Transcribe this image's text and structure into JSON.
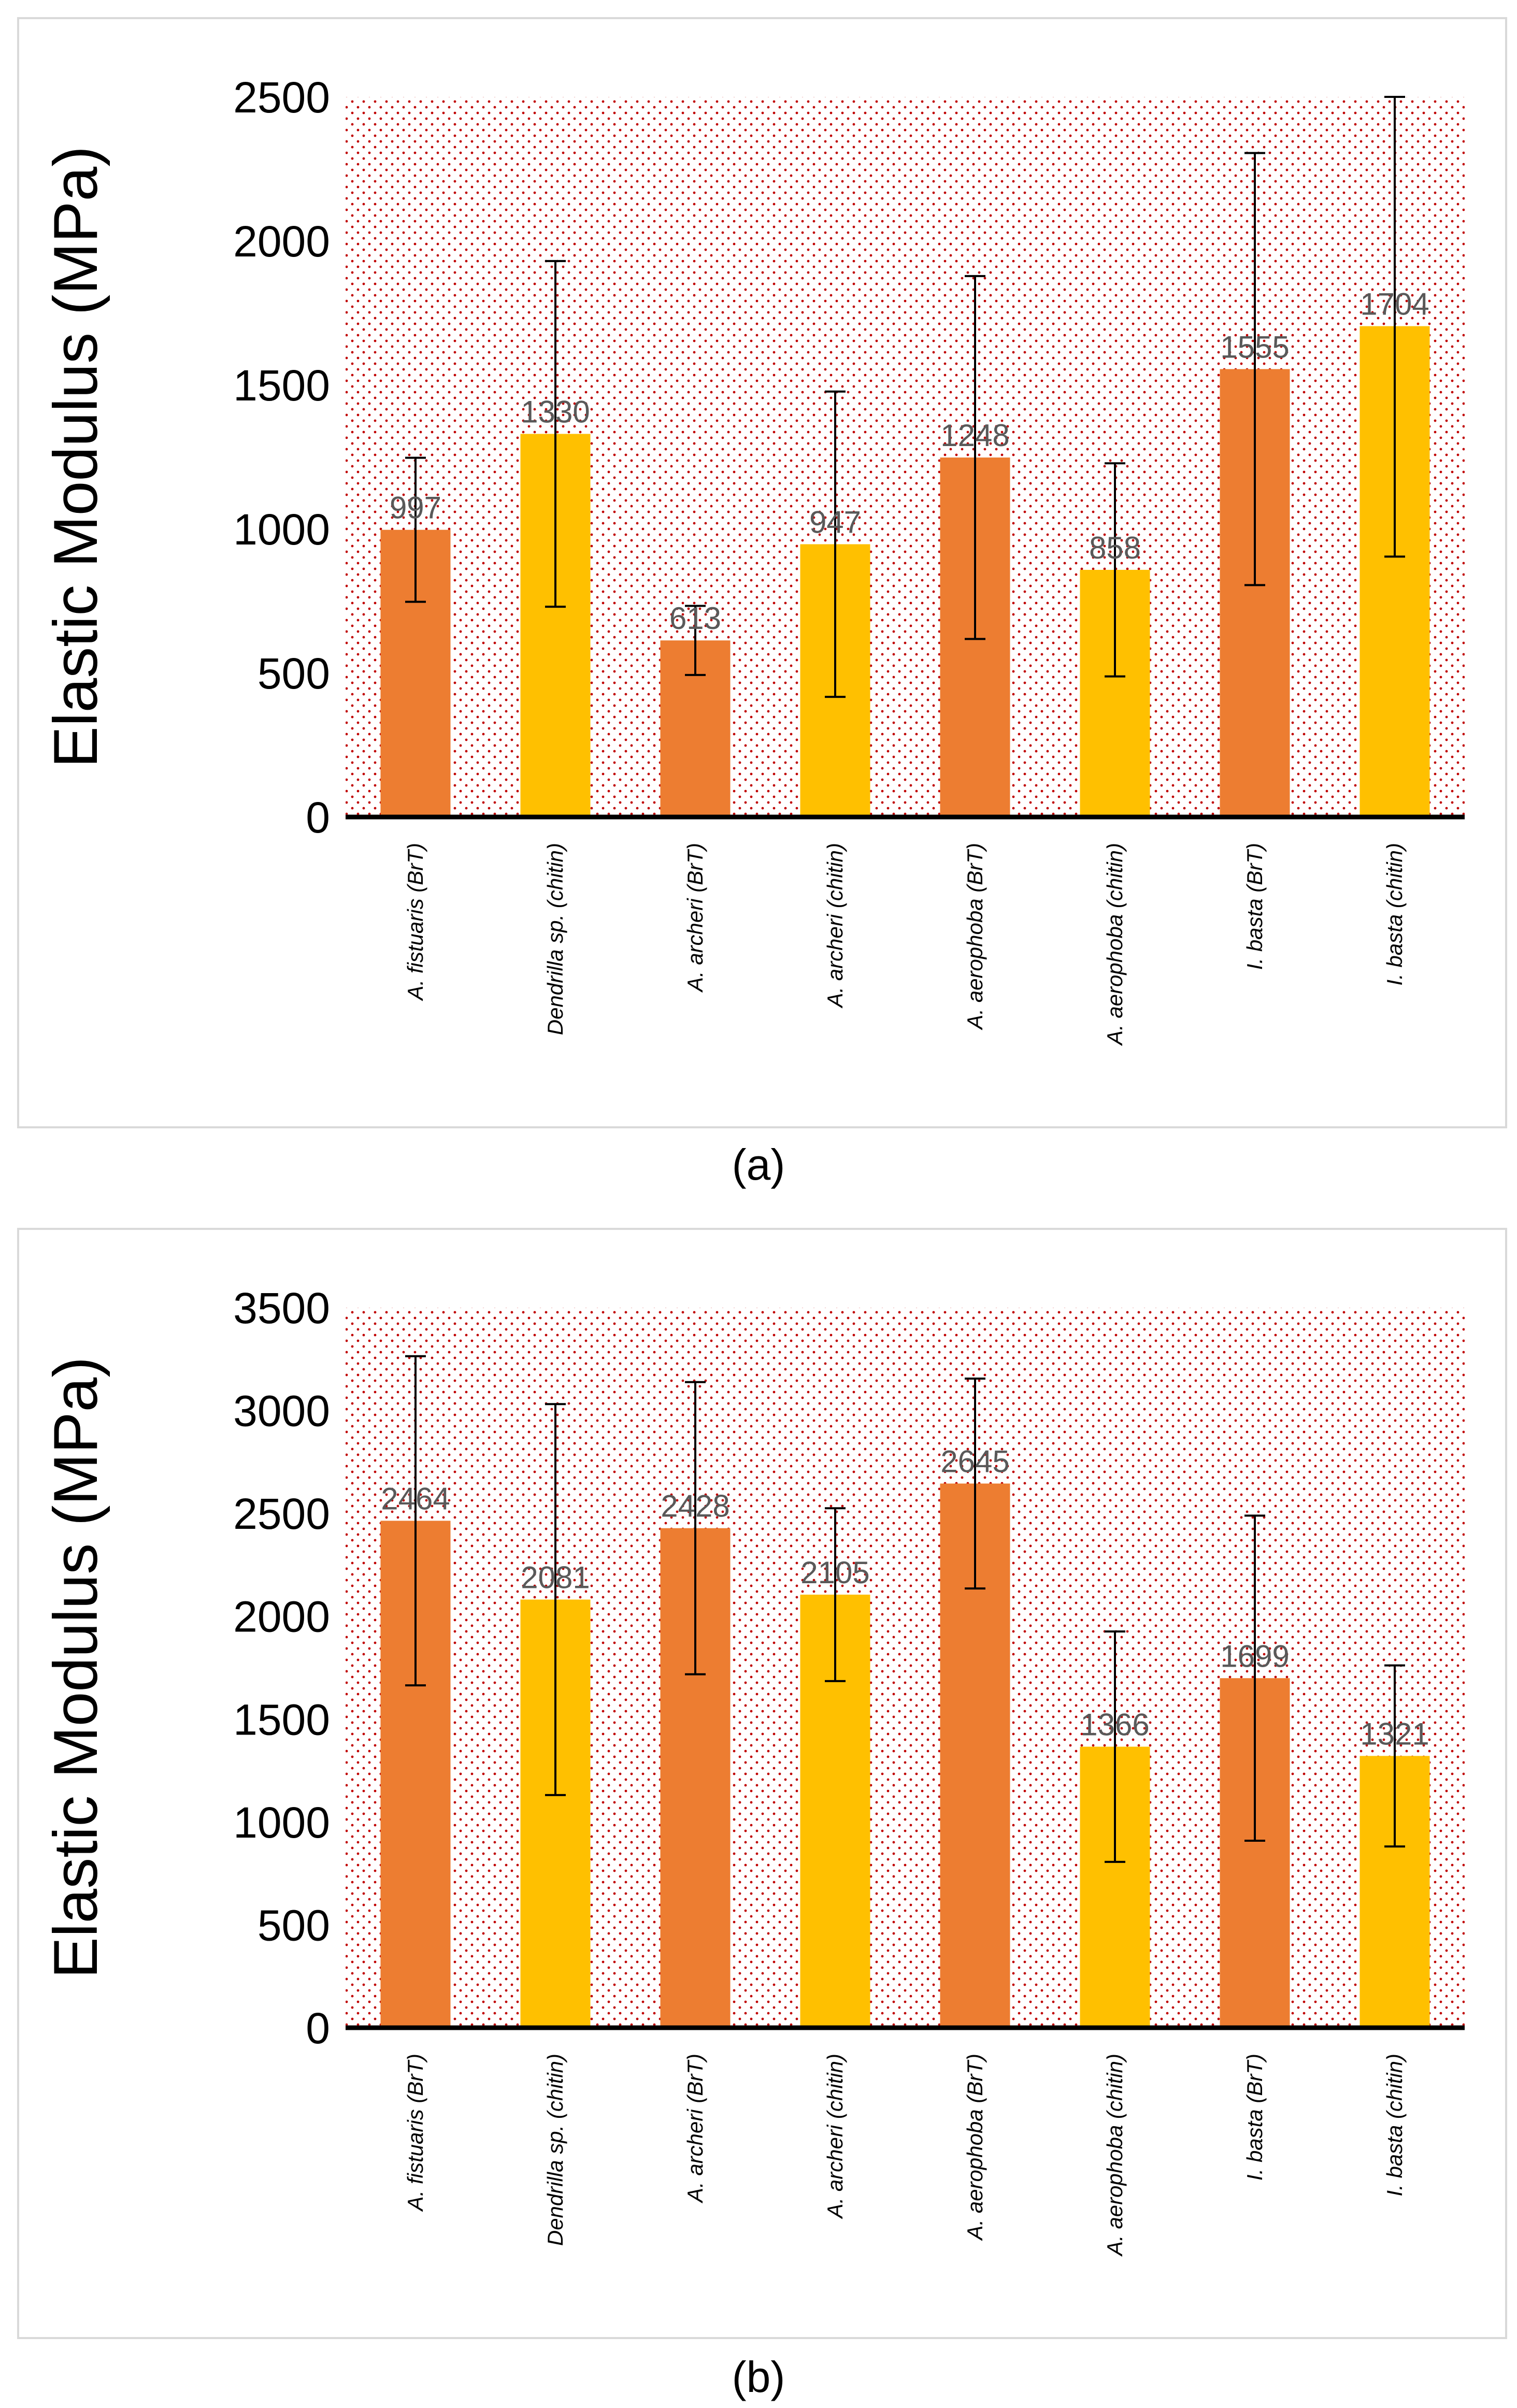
{
  "colors": {
    "brt": "#ED7D31",
    "chitin": "#FFC000",
    "dot": "#C00000",
    "axis": "#000000",
    "label": "#595959"
  },
  "chart_data": [
    {
      "id": "a",
      "type": "bar",
      "caption": "(a)",
      "ylabel": "Elastic Modulus (MPa)",
      "ylim": [
        0,
        2500
      ],
      "yticks": [
        "0",
        "500",
        "1000",
        "1500",
        "2000",
        "2500"
      ],
      "grid": false,
      "categories": [
        "A. fistuaris (BrT)",
        "Dendrilla sp. (chitin)",
        "A. archeri (BrT)",
        "A. archeri (chitin)",
        "A. aerophoba (BrT)",
        "A. aerophoba (chitin)",
        "I. basta (BrT)",
        "I. basta (chitin)"
      ],
      "groups": [
        "brt",
        "chitin",
        "brt",
        "chitin",
        "brt",
        "chitin",
        "brt",
        "chitin"
      ],
      "values": [
        997,
        1330,
        613,
        947,
        1248,
        858,
        1555,
        1704
      ],
      "labels": [
        "997",
        "1330",
        "613",
        "947",
        "1248",
        "858",
        "1555",
        "1704"
      ],
      "error": [
        250,
        600,
        120,
        530,
        630,
        370,
        750,
        800
      ]
    },
    {
      "id": "b",
      "type": "bar",
      "caption": "(b)",
      "ylabel": "Elastic Modulus (MPa)",
      "ylim": [
        0,
        3500
      ],
      "yticks": [
        "0",
        "500",
        "1000",
        "1500",
        "2000",
        "2500",
        "3000",
        "3500"
      ],
      "grid": false,
      "categories": [
        "A. fistuaris (BrT)",
        "Dendrilla sp. (chitin)",
        "A. archeri (BrT)",
        "A. archeri (chitin)",
        "A. aerophoba (BrT)",
        "A. aerophoba (chitin)",
        "I. basta (BrT)",
        "I. basta (chitin)"
      ],
      "groups": [
        "brt",
        "chitin",
        "brt",
        "chitin",
        "brt",
        "chitin",
        "brt",
        "chitin"
      ],
      "values": [
        2464,
        2081,
        2428,
        2105,
        2645,
        1366,
        1699,
        1321
      ],
      "labels": [
        "2464",
        "2081",
        "2428",
        "2105",
        "2645",
        "1366",
        "1699",
        "1321"
      ],
      "error": [
        800,
        950,
        710,
        420,
        510,
        560,
        790,
        440
      ]
    }
  ]
}
